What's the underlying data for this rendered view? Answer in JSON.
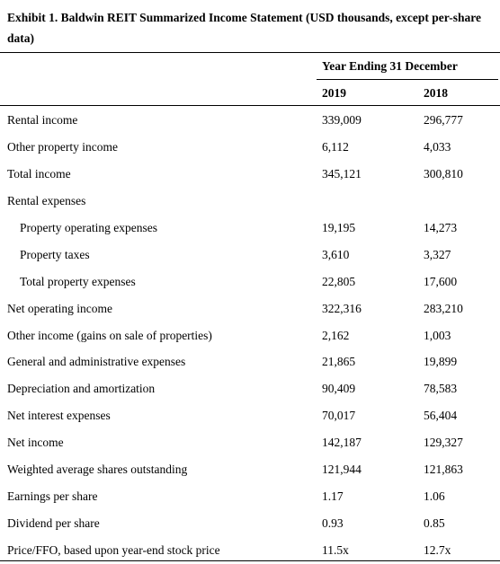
{
  "title": "Exhibit 1. Baldwin REIT Summarized Income Statement (USD thousands, except per-share data)",
  "header": {
    "group_label": "Year Ending 31 December",
    "col1": "2019",
    "col2": "2018"
  },
  "rows": [
    {
      "label": "Rental income",
      "v2019": "339,009",
      "v2018": "296,777"
    },
    {
      "label": "Other property income",
      "v2019": "6,112",
      "v2018": "4,033"
    },
    {
      "label": "Total income",
      "v2019": "345,121",
      "v2018": "300,810"
    },
    {
      "label": "Rental expenses",
      "v2019": "",
      "v2018": ""
    },
    {
      "label": "Property operating expenses",
      "v2019": "19,195",
      "v2018": "14,273"
    },
    {
      "label": "Property taxes",
      "v2019": "3,610",
      "v2018": "3,327"
    },
    {
      "label": "Total property expenses",
      "v2019": "22,805",
      "v2018": "17,600"
    },
    {
      "label": "Net operating income",
      "v2019": "322,316",
      "v2018": "283,210"
    },
    {
      "label": "Other income (gains on sale of properties)",
      "v2019": "2,162",
      "v2018": "1,003"
    },
    {
      "label": "General and administrative expenses",
      "v2019": "21,865",
      "v2018": "19,899"
    },
    {
      "label": "Depreciation and amortization",
      "v2019": "90,409",
      "v2018": "78,583"
    },
    {
      "label": "Net interest expenses",
      "v2019": "70,017",
      "v2018": "56,404"
    },
    {
      "label": "Net income",
      "v2019": "142,187",
      "v2018": "129,327"
    },
    {
      "label": "Weighted average shares outstanding",
      "v2019": "121,944",
      "v2018": "121,863"
    },
    {
      "label": "Earnings per share",
      "v2019": "1.17",
      "v2018": "1.06"
    },
    {
      "label": "Dividend per share",
      "v2019": "0.93",
      "v2018": "0.85"
    },
    {
      "label": "Price/FFO, based upon year-end stock price",
      "v2019": "11.5x",
      "v2018": "12.7x"
    }
  ]
}
